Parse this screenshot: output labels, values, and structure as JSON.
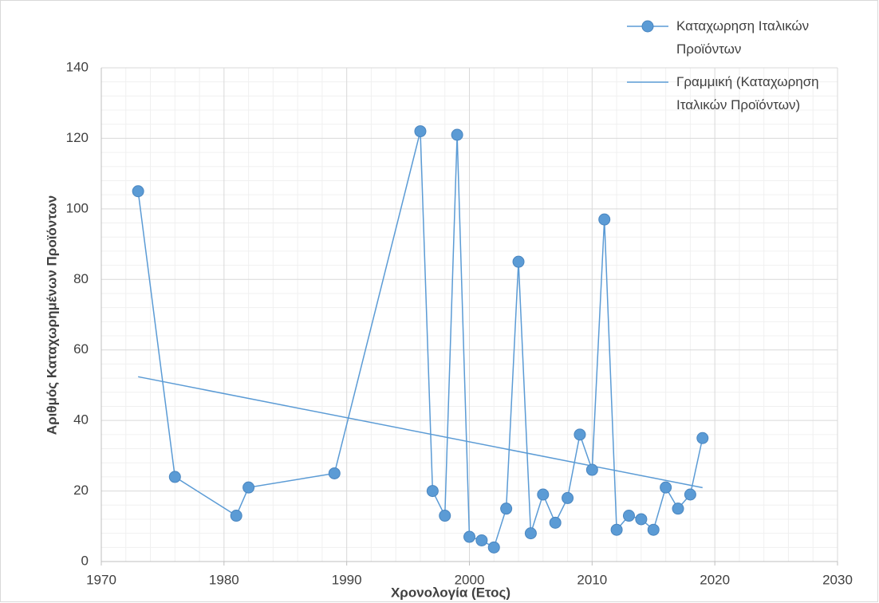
{
  "chart_data": {
    "type": "scatter_line",
    "x_label": "Χρονολογία (Ετος)",
    "y_label": "Αριθμός  Καταχωρημένων Προϊόντων",
    "series": [
      {
        "name": "Καταχωρηση Ιταλικών Προϊόντων",
        "color": "#5b9bd5",
        "x": [
          1973,
          1976,
          1981,
          1982,
          1989,
          1996,
          1997,
          1998,
          1999,
          2000,
          2001,
          2002,
          2003,
          2004,
          2005,
          2006,
          2007,
          2008,
          2009,
          2010,
          2011,
          2012,
          2013,
          2014,
          2015,
          2016,
          2017,
          2018,
          2019
        ],
        "values": [
          105,
          24,
          13,
          21,
          25,
          122,
          20,
          13,
          121,
          7,
          6,
          4,
          15,
          85,
          8,
          19,
          11,
          18,
          36,
          26,
          97,
          9,
          13,
          12,
          9,
          21,
          15,
          19,
          35
        ]
      }
    ],
    "trendline": {
      "name": "Γραμμική (Καταχωρηση Ιταλικών Προϊόντων)",
      "kind": "linear",
      "color": "#5b9bd5"
    },
    "xlim": [
      1970,
      2030
    ],
    "xticks": [
      1970,
      1980,
      1990,
      2000,
      2010,
      2020,
      2030
    ],
    "ylim": [
      0,
      140
    ],
    "yticks": [
      0,
      20,
      40,
      60,
      80,
      100,
      120,
      140
    ],
    "grid": true,
    "minor_grid": true,
    "legend": "top-right"
  }
}
